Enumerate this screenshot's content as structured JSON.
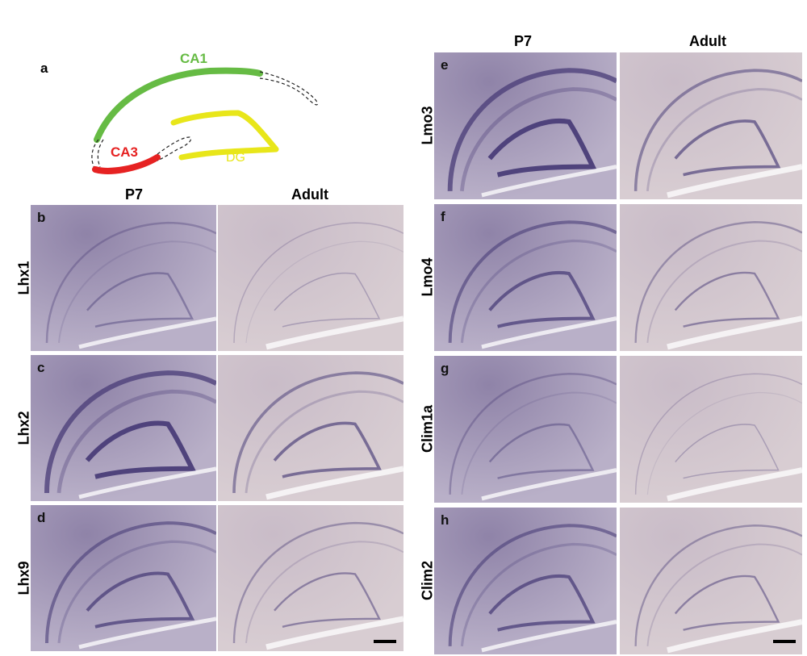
{
  "diagram": {
    "letter": "a",
    "labels": {
      "ca1": "CA1",
      "ca3": "CA3",
      "dg": "DG"
    },
    "colors": {
      "ca1": "#66bb44",
      "ca3": "#e62222",
      "dg": "#e8e61a",
      "dashed": "#222222"
    }
  },
  "left": {
    "headers": {
      "p7": "P7",
      "adult": "Adult"
    },
    "rows": [
      {
        "letter": "b",
        "gene": "Lhx1",
        "tone": "pale"
      },
      {
        "letter": "c",
        "gene": "Lhx2",
        "tone": "strong"
      },
      {
        "letter": "d",
        "gene": "Lhx9",
        "tone": "medium"
      }
    ]
  },
  "right": {
    "headers": {
      "p7": "P7",
      "adult": "Adult"
    },
    "rows": [
      {
        "letter": "e",
        "gene": "Lmo3",
        "tone": "strong"
      },
      {
        "letter": "f",
        "gene": "Lmo4",
        "tone": "medium"
      },
      {
        "letter": "g",
        "gene": "Clim1a",
        "tone": "pale"
      },
      {
        "letter": "h",
        "gene": "Clim2",
        "tone": "medium"
      }
    ]
  },
  "colors": {
    "p7_bg": "#b9b0c8",
    "adult_bg": "#d8cdd2",
    "stain": "#4a3d78"
  }
}
